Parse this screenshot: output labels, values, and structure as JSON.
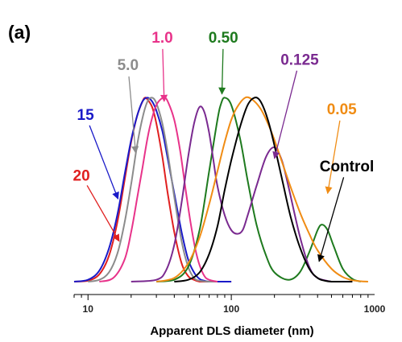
{
  "chart_data": {
    "type": "line",
    "panel_label": "(a)",
    "title": "",
    "xlabel": "Apparent DLS diameter (nm)",
    "ylabel": "",
    "xscale": "log",
    "xlim": [
      8,
      1000
    ],
    "ylim": [
      0,
      1.05
    ],
    "x_ticks": [
      {
        "value": 10,
        "label": "10"
      },
      {
        "value": 100,
        "label": "100"
      },
      {
        "value": 1000,
        "label": "1000"
      }
    ],
    "y_axis_visible": false,
    "grid": false,
    "legend": "inline labels with arrows",
    "series": [
      {
        "name": "20",
        "color": "#e02020",
        "label_xy": [
          9,
          0.55
        ],
        "arrow_to": [
          16.5,
          0.22
        ],
        "x": [
          8,
          10,
          12,
          14,
          16,
          18,
          20,
          22,
          24,
          25,
          26,
          28,
          30,
          33,
          36,
          40,
          45,
          50,
          55,
          60,
          70,
          80,
          100
        ],
        "y": [
          0,
          0.005,
          0.04,
          0.14,
          0.32,
          0.55,
          0.76,
          0.9,
          0.98,
          1.0,
          0.99,
          0.95,
          0.86,
          0.68,
          0.48,
          0.27,
          0.1,
          0.03,
          0.01,
          0.0,
          0,
          0,
          0
        ]
      },
      {
        "name": "15",
        "color": "#1a1ac8",
        "label_xy": [
          9.6,
          0.88
        ],
        "arrow_to": [
          16.2,
          0.45
        ],
        "x": [
          8,
          10,
          12,
          14,
          16,
          18,
          20,
          22,
          24,
          26,
          28,
          30,
          33,
          36,
          40,
          45,
          50,
          55,
          60,
          65,
          70,
          80,
          100
        ],
        "y": [
          0,
          0.01,
          0.06,
          0.18,
          0.36,
          0.58,
          0.77,
          0.9,
          0.98,
          1.0,
          0.98,
          0.93,
          0.82,
          0.67,
          0.48,
          0.27,
          0.12,
          0.05,
          0.015,
          0.005,
          0,
          0,
          0
        ]
      },
      {
        "name": "5.0",
        "color": "#8c8c8c",
        "label_xy": [
          19,
          1.15
        ],
        "arrow_to": [
          21.5,
          0.7
        ],
        "x": [
          10,
          12,
          14,
          16,
          18,
          20,
          22,
          24,
          26,
          28,
          30,
          33,
          36,
          40,
          45,
          50,
          55,
          60,
          70,
          80
        ],
        "y": [
          0,
          0.01,
          0.05,
          0.15,
          0.32,
          0.53,
          0.74,
          0.89,
          0.98,
          1.0,
          0.97,
          0.86,
          0.7,
          0.46,
          0.22,
          0.08,
          0.02,
          0.005,
          0,
          0
        ]
      },
      {
        "name": "1.0",
        "color": "#e8338a",
        "label_xy": [
          33,
          1.3
        ],
        "arrow_to": [
          34,
          0.98
        ],
        "x": [
          12,
          15,
          18,
          20,
          22,
          24,
          26,
          28,
          30,
          32,
          34,
          36,
          40,
          44,
          48,
          52,
          56,
          60,
          65,
          70,
          80
        ],
        "y": [
          0,
          0.02,
          0.12,
          0.27,
          0.45,
          0.62,
          0.78,
          0.89,
          0.96,
          0.99,
          1.0,
          0.98,
          0.88,
          0.71,
          0.5,
          0.32,
          0.18,
          0.09,
          0.03,
          0.01,
          0
        ]
      },
      {
        "name": "0.50",
        "color": "#1e7a1e",
        "label_xy": [
          88,
          1.3
        ],
        "arrow_to": [
          86,
          1.02
        ],
        "x": [
          30,
          40,
          50,
          60,
          70,
          80,
          85,
          90,
          100,
          115,
          130,
          150,
          175,
          200,
          250,
          300,
          350,
          400,
          430,
          470,
          520,
          600,
          700,
          800
        ],
        "y": [
          0,
          0.01,
          0.08,
          0.28,
          0.6,
          0.88,
          0.97,
          1.0,
          0.96,
          0.78,
          0.55,
          0.31,
          0.14,
          0.05,
          0.01,
          0.05,
          0.16,
          0.28,
          0.31,
          0.28,
          0.19,
          0.07,
          0.015,
          0
        ]
      },
      {
        "name": "0.125",
        "color": "#7a2a90",
        "label_xy": [
          300,
          1.18
        ],
        "arrow_to": [
          200,
          0.67
        ],
        "x": [
          20,
          30,
          35,
          40,
          45,
          50,
          55,
          60,
          65,
          70,
          75,
          80,
          90,
          100,
          110,
          120,
          130,
          150,
          175,
          200,
          225,
          250,
          300,
          350,
          400,
          500
        ],
        "y": [
          0,
          0.01,
          0.06,
          0.2,
          0.43,
          0.68,
          0.86,
          0.95,
          0.92,
          0.81,
          0.66,
          0.52,
          0.36,
          0.28,
          0.26,
          0.28,
          0.36,
          0.52,
          0.68,
          0.73,
          0.66,
          0.52,
          0.25,
          0.08,
          0.02,
          0
        ]
      },
      {
        "name": "0.05",
        "color": "#f08c14",
        "label_xy": [
          590,
          0.91
        ],
        "arrow_to": [
          470,
          0.48
        ],
        "x": [
          30,
          40,
          50,
          60,
          70,
          80,
          90,
          100,
          110,
          125,
          140,
          160,
          180,
          200,
          250,
          300,
          350,
          400,
          500,
          600,
          700,
          800,
          900
        ],
        "y": [
          0,
          0.02,
          0.1,
          0.24,
          0.42,
          0.6,
          0.76,
          0.88,
          0.95,
          1.0,
          0.99,
          0.94,
          0.86,
          0.77,
          0.55,
          0.38,
          0.26,
          0.17,
          0.07,
          0.025,
          0.008,
          0.002,
          0
        ]
      },
      {
        "name": "Control",
        "color": "#000000",
        "label_xy": [
          640,
          0.6
        ],
        "arrow_to": [
          410,
          0.11
        ],
        "x": [
          40,
          50,
          60,
          70,
          80,
          90,
          100,
          115,
          130,
          145,
          160,
          180,
          200,
          230,
          260,
          300,
          350,
          400,
          450,
          500,
          600,
          700
        ],
        "y": [
          0,
          0.01,
          0.05,
          0.15,
          0.3,
          0.5,
          0.66,
          0.84,
          0.96,
          1.0,
          0.98,
          0.88,
          0.74,
          0.53,
          0.35,
          0.19,
          0.07,
          0.02,
          0.005,
          0,
          0,
          0
        ]
      }
    ]
  }
}
